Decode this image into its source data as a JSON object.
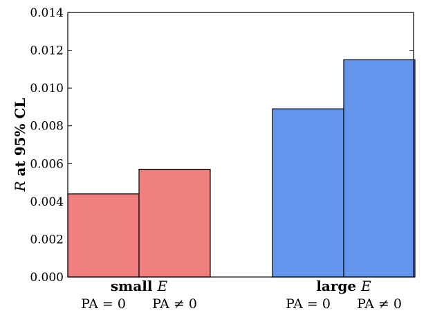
{
  "chart_data": {
    "type": "bar",
    "title": "",
    "ylabel": {
      "var": "R",
      "rest": " at 95% CL"
    },
    "ylim": [
      0,
      0.014
    ],
    "yticks": [
      "0.000",
      "0.002",
      "0.004",
      "0.006",
      "0.008",
      "0.010",
      "0.012",
      "0.014"
    ],
    "grid": false,
    "groups": [
      {
        "label_text": "small ",
        "label_var": "E",
        "color": "#f08080",
        "bars": [
          {
            "label": "PA = 0",
            "value": 0.0044
          },
          {
            "label": "PA ≠ 0",
            "value": 0.0057
          }
        ]
      },
      {
        "label_text": "large ",
        "label_var": "E",
        "color": "#6495ed",
        "bars": [
          {
            "label": "PA = 0",
            "value": 0.0089
          },
          {
            "label": "PA ≠ 0",
            "value": 0.0115
          }
        ]
      }
    ]
  }
}
